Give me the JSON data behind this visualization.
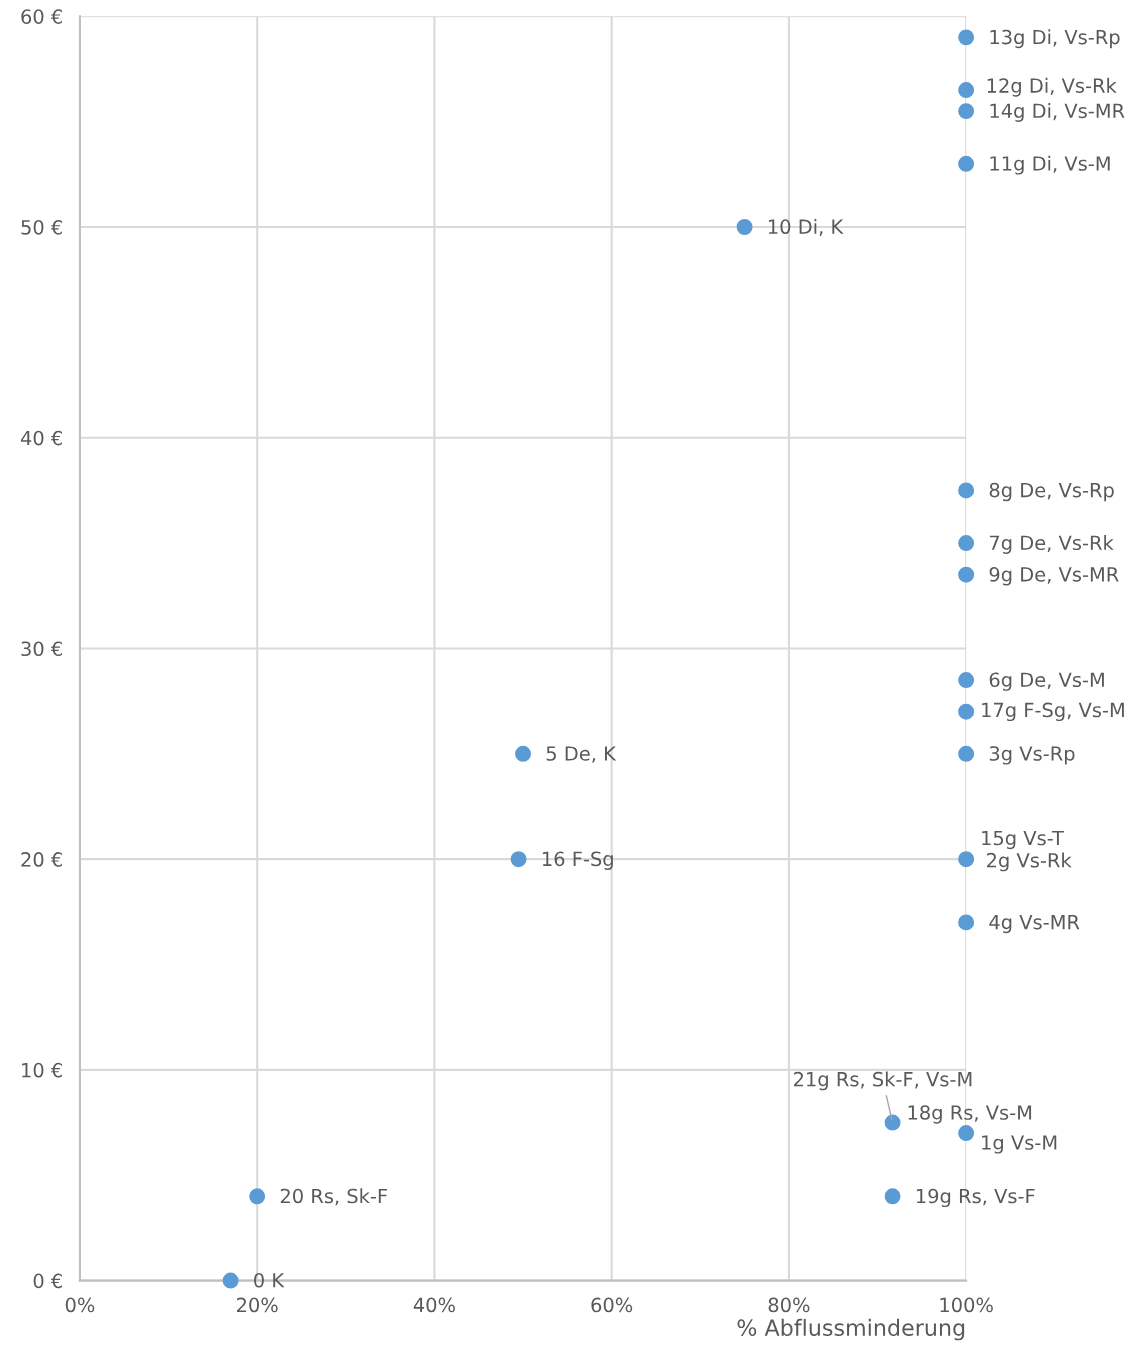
{
  "chart_data": {
    "type": "scatter",
    "xlabel": "% Abflussminderung",
    "x": [
      100,
      100,
      100,
      100,
      75,
      100,
      100,
      100,
      100,
      100,
      100,
      50,
      100,
      null,
      49.5,
      100,
      91.7,
      null,
      100,
      91.7,
      20,
      17
    ],
    "series": [
      {
        "color": "#5b9bd5",
        "values": [
          59,
          56.5,
          55.5,
          53,
          50,
          37.5,
          35,
          33.5,
          28.5,
          27,
          25,
          25,
          20,
          null,
          20,
          17,
          7.5,
          null,
          7,
          4,
          4,
          0
        ]
      }
    ],
    "annotations": [
      {
        "text": "13g Di, Vs-Rp",
        "x": 100,
        "y": 59
      },
      {
        "text": "12g Di, Vs-Rk",
        "x": 100,
        "y": 56.5
      },
      {
        "text": "14g Di, Vs-MR",
        "x": 100,
        "y": 55.5
      },
      {
        "text": "11g Di, Vs-M",
        "x": 100,
        "y": 53
      },
      {
        "text": "10 Di, K",
        "x": 75,
        "y": 50
      },
      {
        "text": "8g De, Vs-Rp",
        "x": 100,
        "y": 37.5
      },
      {
        "text": "7g De, Vs-Rk",
        "x": 100,
        "y": 35
      },
      {
        "text": "9g De, Vs-MR",
        "x": 100,
        "y": 33.5
      },
      {
        "text": "6g De, Vs-M",
        "x": 100,
        "y": 28.5
      },
      {
        "text": "17g F-Sg, Vs-M",
        "x": 100,
        "y": 27
      },
      {
        "text": "3g Vs-Rp",
        "x": 100,
        "y": 25
      },
      {
        "text": "5 De, K",
        "x": 50,
        "y": 25
      },
      {
        "text": "15g Vs-T",
        "x": 100,
        "y": 20
      },
      {
        "text": "2g Vs-Rk",
        "x": 100,
        "y": 20
      },
      {
        "text": "16 F-Sg",
        "x": 49.5,
        "y": 20
      },
      {
        "text": "4g Vs-MR",
        "x": 100,
        "y": 17
      },
      {
        "text": "21g Rs, Sk-F, Vs-M",
        "x": 91.7,
        "y": 7.5
      },
      {
        "text": "18g Rs, Vs-M",
        "x": 91.7,
        "y": 7.5
      },
      {
        "text": "1g Vs-M",
        "x": 100,
        "y": 7
      },
      {
        "text": "19g Rs, Vs-F",
        "x": 91.7,
        "y": 4
      },
      {
        "text": "20 Rs, Sk-F",
        "x": 20,
        "y": 4
      },
      {
        "text": "0 K",
        "x": 17,
        "y": 0
      }
    ],
    "xlim": [
      0,
      100
    ],
    "ylim": [
      0,
      60
    ],
    "xticks": [
      {
        "value": 0,
        "label": "0%"
      },
      {
        "value": 20,
        "label": "20%"
      },
      {
        "value": 40,
        "label": "40%"
      },
      {
        "value": 60,
        "label": "60%"
      },
      {
        "value": 80,
        "label": "80%"
      },
      {
        "value": 100,
        "label": "100%"
      }
    ],
    "yticks": [
      {
        "value": 0,
        "label": "0 €"
      },
      {
        "value": 10,
        "label": "10 €"
      },
      {
        "value": 20,
        "label": "20 €"
      },
      {
        "value": 30,
        "label": "30 €"
      },
      {
        "value": 40,
        "label": "40 €"
      },
      {
        "value": 50,
        "label": "50 €"
      },
      {
        "value": 60,
        "label": "60 €"
      }
    ],
    "grid": true,
    "marker": "circle"
  }
}
